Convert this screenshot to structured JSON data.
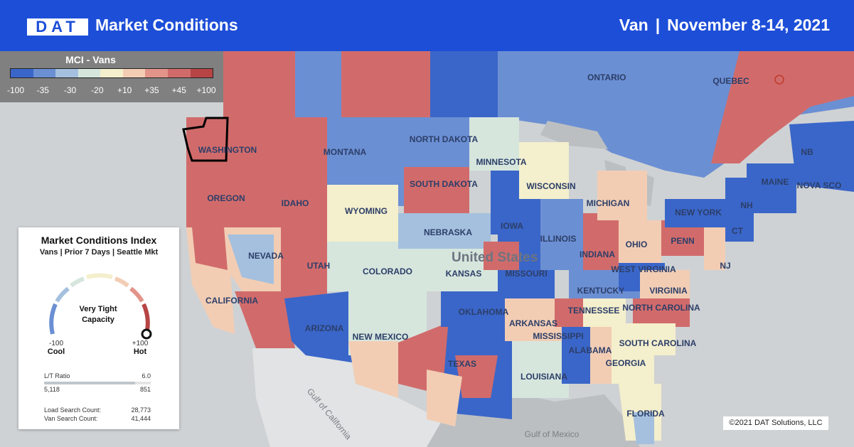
{
  "header": {
    "logo": "DAT",
    "title": "Market Conditions",
    "equipment": "Van",
    "separator": "|",
    "date_range": "November 8-14, 2021"
  },
  "legend": {
    "title": "MCI - Vans",
    "colors": [
      "#3a66c9",
      "#6b8fd3",
      "#a4c0de",
      "#d6e6dd",
      "#f4efcc",
      "#f2cdb4",
      "#e3948a",
      "#d16b6b",
      "#b74545"
    ],
    "ticks": [
      "-100",
      "-35",
      "-30",
      "-20",
      "+10",
      "+35",
      "+45",
      "+100"
    ]
  },
  "map_labels": {
    "countries": [
      "United States"
    ],
    "provinces": [
      "ONTARIO",
      "QUEBEC",
      "NB",
      "NOVA SCO"
    ],
    "states": [
      "WASHINGTON",
      "OREGON",
      "CALIFORNIA",
      "NEVADA",
      "IDAHO",
      "MONTANA",
      "WYOMING",
      "UTAH",
      "ARIZONA",
      "COLORADO",
      "NEW MEXICO",
      "NORTH DAKOTA",
      "SOUTH DAKOTA",
      "NEBRASKA",
      "KANSAS",
      "OKLAHOMA",
      "TEXAS",
      "MINNESOTA",
      "IOWA",
      "MISSOURI",
      "ARKANSAS",
      "LOUISIANA",
      "WISCONSIN",
      "MICHIGAN",
      "ILLINOIS",
      "INDIANA",
      "OHIO",
      "KENTUCKY",
      "TENNESSEE",
      "MISSISSIPPI",
      "ALABAMA",
      "GEORGIA",
      "FLORIDA",
      "SOUTH CAROLINA",
      "NORTH CAROLINA",
      "VIRGINIA",
      "WEST VIRGINIA",
      "PENN",
      "NEW YORK",
      "MAINE",
      "NH",
      "NJ",
      "CT"
    ],
    "water": [
      "Gulf of California",
      "Gulf of Mexico"
    ]
  },
  "panel": {
    "title": "Market Conditions Index",
    "subtitle": "Vans | Prior 7 Days | Seattle Mkt",
    "gauge_state_line1": "Very Tight",
    "gauge_state_line2": "Capacity",
    "gauge_value": 100,
    "min_value": "-100",
    "min_label": "Cool",
    "max_value": "+100",
    "max_label": "Hot",
    "lt_ratio_label": "L/T Ratio",
    "lt_ratio_value": "6.0",
    "lt_ratio_fraction": 0.85,
    "loads": "5,118",
    "trucks": "851",
    "load_search_label": "Load Search Count:",
    "load_search_value": "28,773",
    "van_search_label": "Van Search Count:",
    "van_search_value": "41,444"
  },
  "copyright": "©2021 DAT Solutions, LLC"
}
